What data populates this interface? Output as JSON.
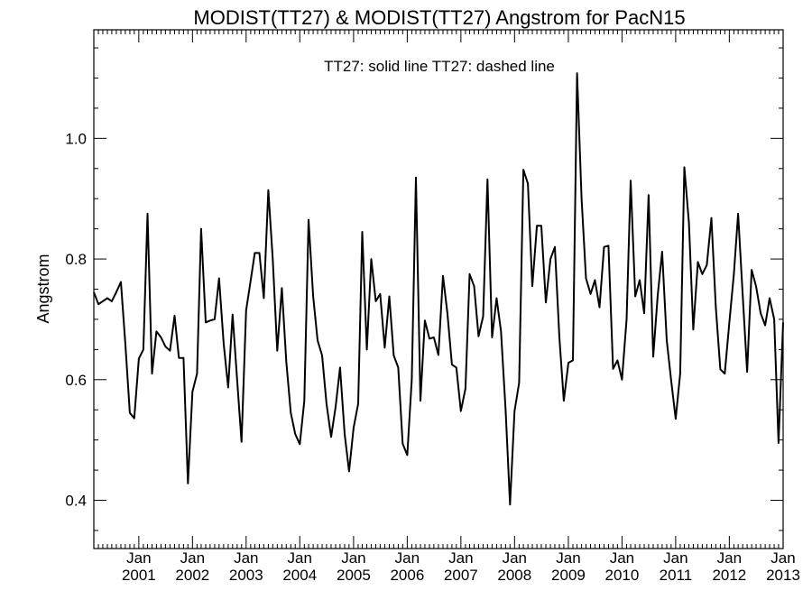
{
  "chart_data": {
    "type": "line",
    "title": "MODIST(TT27) & MODIST(TT27)  Angstrom for PacN15",
    "annotation": "TT27: solid line   TT27: dashed line",
    "ylabel": "Angstrom",
    "xlabel": "",
    "ylim": [
      0.32,
      1.18
    ],
    "xlim": [
      "2000-03-01",
      "2013-01-01"
    ],
    "y_ticks": [
      {
        "value": 0.4,
        "label": "0.4"
      },
      {
        "value": 0.6,
        "label": "0.6"
      },
      {
        "value": 0.8,
        "label": "0.8"
      },
      {
        "value": 1.0,
        "label": "1.0"
      }
    ],
    "x_ticks": [
      {
        "date": "2001-01-01",
        "month": "Jan",
        "year": "2001"
      },
      {
        "date": "2002-01-01",
        "month": "Jan",
        "year": "2002"
      },
      {
        "date": "2003-01-01",
        "month": "Jan",
        "year": "2003"
      },
      {
        "date": "2004-01-01",
        "month": "Jan",
        "year": "2004"
      },
      {
        "date": "2005-01-01",
        "month": "Jan",
        "year": "2005"
      },
      {
        "date": "2006-01-01",
        "month": "Jan",
        "year": "2006"
      },
      {
        "date": "2007-01-01",
        "month": "Jan",
        "year": "2007"
      },
      {
        "date": "2008-01-01",
        "month": "Jan",
        "year": "2008"
      },
      {
        "date": "2009-01-01",
        "month": "Jan",
        "year": "2009"
      },
      {
        "date": "2010-01-01",
        "month": "Jan",
        "year": "2010"
      },
      {
        "date": "2011-01-01",
        "month": "Jan",
        "year": "2011"
      },
      {
        "date": "2012-01-01",
        "month": "Jan",
        "year": "2012"
      },
      {
        "date": "2013-01-01",
        "month": "Jan",
        "year": "2013"
      }
    ],
    "grid": false,
    "series": [
      {
        "style": "solid",
        "color": "#000000",
        "points": [
          [
            "2000-03-01",
            0.745
          ],
          [
            "2000-04-01",
            0.725
          ],
          [
            "2000-05-01",
            0.73
          ],
          [
            "2000-06-01",
            0.735
          ],
          [
            "2000-07-01",
            0.73
          ],
          [
            "2000-08-01",
            0.745
          ],
          [
            "2000-09-01",
            0.762
          ],
          [
            "2000-10-01",
            0.66
          ],
          [
            "2000-11-01",
            0.545
          ],
          [
            "2000-12-01",
            0.536
          ],
          [
            "2001-01-01",
            0.635
          ],
          [
            "2001-02-01",
            0.65
          ],
          [
            "2001-03-01",
            0.875
          ],
          [
            "2001-04-01",
            0.61
          ],
          [
            "2001-05-01",
            0.68
          ],
          [
            "2001-06-01",
            0.67
          ],
          [
            "2001-07-01",
            0.655
          ],
          [
            "2001-08-01",
            0.648
          ],
          [
            "2001-09-01",
            0.706
          ],
          [
            "2001-10-01",
            0.636
          ],
          [
            "2001-11-01",
            0.636
          ],
          [
            "2001-12-01",
            0.428
          ],
          [
            "2002-01-01",
            0.58
          ],
          [
            "2002-02-01",
            0.61
          ],
          [
            "2002-03-01",
            0.85
          ],
          [
            "2002-04-01",
            0.695
          ],
          [
            "2002-05-01",
            0.698
          ],
          [
            "2002-06-01",
            0.7
          ],
          [
            "2002-07-01",
            0.768
          ],
          [
            "2002-08-01",
            0.66
          ],
          [
            "2002-09-01",
            0.587
          ],
          [
            "2002-10-01",
            0.708
          ],
          [
            "2002-11-01",
            0.598
          ],
          [
            "2002-12-01",
            0.497
          ],
          [
            "2003-01-01",
            0.715
          ],
          [
            "2003-02-01",
            0.765
          ],
          [
            "2003-03-01",
            0.81
          ],
          [
            "2003-04-01",
            0.81
          ],
          [
            "2003-05-01",
            0.735
          ],
          [
            "2003-06-01",
            0.914
          ],
          [
            "2003-07-01",
            0.8
          ],
          [
            "2003-08-01",
            0.648
          ],
          [
            "2003-09-01",
            0.752
          ],
          [
            "2003-10-01",
            0.63
          ],
          [
            "2003-11-01",
            0.545
          ],
          [
            "2003-12-01",
            0.51
          ],
          [
            "2004-01-01",
            0.493
          ],
          [
            "2004-02-01",
            0.565
          ],
          [
            "2004-03-01",
            0.865
          ],
          [
            "2004-04-01",
            0.738
          ],
          [
            "2004-05-01",
            0.665
          ],
          [
            "2004-06-01",
            0.64
          ],
          [
            "2004-07-01",
            0.56
          ],
          [
            "2004-08-01",
            0.505
          ],
          [
            "2004-09-01",
            0.555
          ],
          [
            "2004-10-01",
            0.62
          ],
          [
            "2004-11-01",
            0.51
          ],
          [
            "2004-12-01",
            0.448
          ],
          [
            "2005-01-01",
            0.52
          ],
          [
            "2005-02-01",
            0.56
          ],
          [
            "2005-03-01",
            0.845
          ],
          [
            "2005-04-01",
            0.65
          ],
          [
            "2005-05-01",
            0.8
          ],
          [
            "2005-06-01",
            0.73
          ],
          [
            "2005-07-01",
            0.742
          ],
          [
            "2005-08-01",
            0.653
          ],
          [
            "2005-09-01",
            0.738
          ],
          [
            "2005-10-01",
            0.64
          ],
          [
            "2005-11-01",
            0.62
          ],
          [
            "2005-12-01",
            0.494
          ],
          [
            "2006-01-01",
            0.475
          ],
          [
            "2006-02-01",
            0.6
          ],
          [
            "2006-03-01",
            0.935
          ],
          [
            "2006-04-01",
            0.565
          ],
          [
            "2006-05-01",
            0.698
          ],
          [
            "2006-06-01",
            0.668
          ],
          [
            "2006-07-01",
            0.67
          ],
          [
            "2006-08-01",
            0.641
          ],
          [
            "2006-09-01",
            0.772
          ],
          [
            "2006-10-01",
            0.71
          ],
          [
            "2006-11-01",
            0.625
          ],
          [
            "2006-12-01",
            0.62
          ],
          [
            "2007-01-01",
            0.548
          ],
          [
            "2007-02-01",
            0.585
          ],
          [
            "2007-03-01",
            0.775
          ],
          [
            "2007-04-01",
            0.755
          ],
          [
            "2007-05-01",
            0.672
          ],
          [
            "2007-06-01",
            0.705
          ],
          [
            "2007-07-01",
            0.932
          ],
          [
            "2007-08-01",
            0.67
          ],
          [
            "2007-09-01",
            0.735
          ],
          [
            "2007-10-01",
            0.68
          ],
          [
            "2007-11-01",
            0.55
          ],
          [
            "2007-12-01",
            0.393
          ],
          [
            "2008-01-01",
            0.548
          ],
          [
            "2008-02-01",
            0.595
          ],
          [
            "2008-03-01",
            0.948
          ],
          [
            "2008-04-01",
            0.925
          ],
          [
            "2008-05-01",
            0.755
          ],
          [
            "2008-06-01",
            0.855
          ],
          [
            "2008-07-01",
            0.855
          ],
          [
            "2008-08-01",
            0.728
          ],
          [
            "2008-09-01",
            0.8
          ],
          [
            "2008-10-01",
            0.82
          ],
          [
            "2008-11-01",
            0.67
          ],
          [
            "2008-12-01",
            0.565
          ],
          [
            "2009-01-01",
            0.628
          ],
          [
            "2009-02-01",
            0.632
          ],
          [
            "2009-03-01",
            1.108
          ],
          [
            "2009-04-01",
            0.9
          ],
          [
            "2009-05-01",
            0.768
          ],
          [
            "2009-06-01",
            0.742
          ],
          [
            "2009-07-01",
            0.765
          ],
          [
            "2009-08-01",
            0.72
          ],
          [
            "2009-09-01",
            0.82
          ],
          [
            "2009-10-01",
            0.822
          ],
          [
            "2009-11-01",
            0.618
          ],
          [
            "2009-12-01",
            0.632
          ],
          [
            "2010-01-01",
            0.6
          ],
          [
            "2010-02-01",
            0.7
          ],
          [
            "2010-03-01",
            0.93
          ],
          [
            "2010-04-01",
            0.738
          ],
          [
            "2010-05-01",
            0.765
          ],
          [
            "2010-06-01",
            0.71
          ],
          [
            "2010-07-01",
            0.906
          ],
          [
            "2010-08-01",
            0.638
          ],
          [
            "2010-09-01",
            0.74
          ],
          [
            "2010-10-01",
            0.812
          ],
          [
            "2010-11-01",
            0.665
          ],
          [
            "2010-12-01",
            0.6
          ],
          [
            "2011-01-01",
            0.535
          ],
          [
            "2011-02-01",
            0.61
          ],
          [
            "2011-03-01",
            0.952
          ],
          [
            "2011-04-01",
            0.86
          ],
          [
            "2011-05-01",
            0.683
          ],
          [
            "2011-06-01",
            0.795
          ],
          [
            "2011-07-01",
            0.775
          ],
          [
            "2011-08-01",
            0.79
          ],
          [
            "2011-09-01",
            0.868
          ],
          [
            "2011-10-01",
            0.72
          ],
          [
            "2011-11-01",
            0.617
          ],
          [
            "2011-12-01",
            0.61
          ],
          [
            "2012-01-01",
            0.695
          ],
          [
            "2012-02-01",
            0.775
          ],
          [
            "2012-03-01",
            0.875
          ],
          [
            "2012-04-01",
            0.74
          ],
          [
            "2012-05-01",
            0.613
          ],
          [
            "2012-06-01",
            0.782
          ],
          [
            "2012-07-01",
            0.755
          ],
          [
            "2012-08-01",
            0.71
          ],
          [
            "2012-09-01",
            0.69
          ],
          [
            "2012-10-01",
            0.735
          ],
          [
            "2012-11-01",
            0.7
          ],
          [
            "2012-12-01",
            0.495
          ],
          [
            "2013-01-01",
            0.695
          ]
        ]
      }
    ]
  }
}
